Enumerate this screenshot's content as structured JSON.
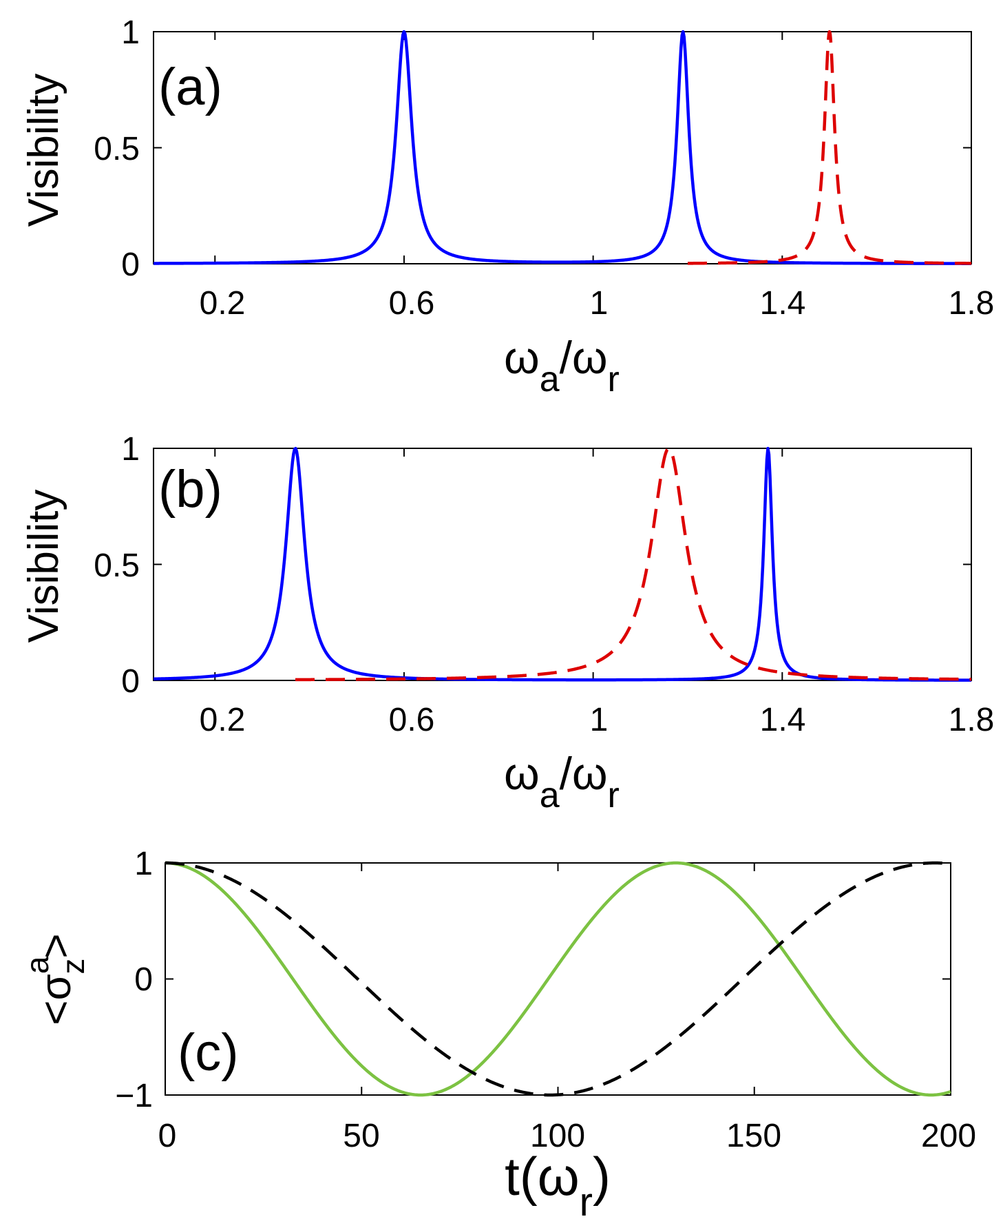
{
  "chart_data": [
    {
      "type": "line",
      "panel_label": "(a)",
      "ylabel": "Visibility",
      "xlabel": {
        "base1": "ω",
        "sub1": "a",
        "slash": "/",
        "base2": "ω",
        "sub2": "r"
      },
      "xlim": [
        0.07,
        1.8
      ],
      "ylim": [
        0,
        1
      ],
      "xticks": [
        0.2,
        0.6,
        1,
        1.4,
        1.8
      ],
      "xtick_labels": [
        "0.2",
        "0.6",
        "1",
        "1.4",
        "1.8"
      ],
      "yticks": [
        0,
        0.5,
        1
      ],
      "ytick_labels": [
        "0",
        "0.5",
        "1"
      ],
      "series": [
        {
          "name": "solid",
          "color": "#0000ff",
          "style": "solid",
          "x_range": [
            0.07,
            1.8
          ],
          "peaks": [
            {
              "center": 0.6,
              "width": 0.02
            },
            {
              "center": 1.19,
              "width": 0.015
            }
          ],
          "floor": 0
        },
        {
          "name": "dashed",
          "color": "#dd0000",
          "style": "dashed",
          "x_range": [
            1.2,
            1.8
          ],
          "peaks": [
            {
              "center": 1.5,
              "width": 0.013
            }
          ],
          "floor": 0
        }
      ]
    },
    {
      "type": "line",
      "panel_label": "(b)",
      "ylabel": "Visibility",
      "xlabel": {
        "base1": "ω",
        "sub1": "a",
        "slash": "/",
        "base2": "ω",
        "sub2": "r"
      },
      "xlim": [
        0.07,
        1.8
      ],
      "ylim": [
        0,
        1
      ],
      "xticks": [
        0.2,
        0.6,
        1,
        1.4,
        1.8
      ],
      "xtick_labels": [
        "0.2",
        "0.6",
        "1",
        "1.4",
        "1.8"
      ],
      "yticks": [
        0,
        0.5,
        1
      ],
      "ytick_labels": [
        "0",
        "0.5",
        "1"
      ],
      "series": [
        {
          "name": "solid",
          "color": "#0000ff",
          "style": "solid",
          "x_range": [
            0.07,
            1.8
          ],
          "peaks": [
            {
              "center": 0.37,
              "width": 0.024
            },
            {
              "center": 1.37,
              "width": 0.011
            }
          ],
          "floor": 0
        },
        {
          "name": "dashed",
          "color": "#dd0000",
          "style": "dashed",
          "x_range": [
            0.37,
            1.8
          ],
          "peaks": [
            {
              "center": 1.16,
              "width": 0.045
            }
          ],
          "floor": 0
        }
      ]
    },
    {
      "type": "line",
      "panel_label": "(c)",
      "ylabel": {
        "open": "<",
        "sigma": "σ",
        "sup": "a",
        "sub": "z",
        "close": ">"
      },
      "xlabel": {
        "base": "t(ω",
        "sub": "r",
        "close": ")"
      },
      "xlim": [
        0,
        200
      ],
      "ylim": [
        -1,
        1
      ],
      "xticks": [
        0,
        50,
        100,
        150,
        200
      ],
      "xtick_labels": [
        "0",
        "50",
        "100",
        "150",
        "200"
      ],
      "yticks": [
        -1,
        0,
        1
      ],
      "ytick_labels": [
        "−1",
        "0",
        "1"
      ],
      "series": [
        {
          "name": "solid",
          "color": "#7cc242",
          "style": "solid",
          "function": "cos",
          "period": 130,
          "x_range": [
            0,
            200
          ]
        },
        {
          "name": "dashed",
          "color": "#000000",
          "style": "dashed",
          "function": "cos",
          "period": 196,
          "x_range": [
            0,
            200
          ]
        }
      ]
    }
  ]
}
